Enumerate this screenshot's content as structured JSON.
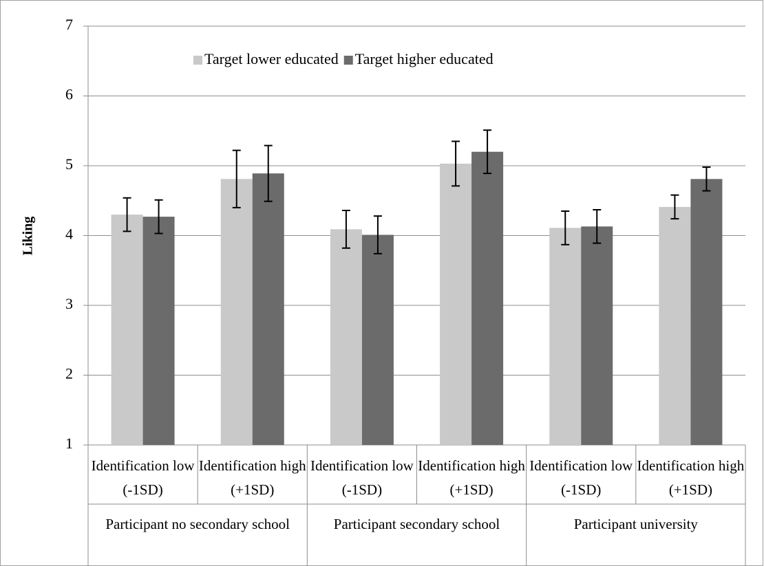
{
  "chart_data": {
    "type": "bar",
    "y_label": "Liking",
    "categories": [
      "Identification low (-1SD)",
      "Identification high (+1SD)",
      "Identification low (-1SD)",
      "Identification high (+1SD)",
      "Identification low (-1SD)",
      "Identification high (+1SD)"
    ],
    "groups": [
      "Participant no secondary school",
      "Participant secondary school",
      "Participant university"
    ],
    "series": [
      {
        "name": "Target lower educated",
        "color": "#c9c9c9",
        "values": [
          4.3,
          4.81,
          4.09,
          5.03,
          4.11,
          4.41
        ],
        "errors": [
          0.24,
          0.41,
          0.27,
          0.32,
          0.24,
          0.17
        ]
      },
      {
        "name": "Target higher educated",
        "color": "#6b6b6b",
        "values": [
          4.27,
          4.89,
          4.01,
          5.2,
          4.13,
          4.81
        ],
        "errors": [
          0.24,
          0.4,
          0.27,
          0.31,
          0.24,
          0.17
        ]
      }
    ],
    "ylim": [
      1,
      7
    ],
    "yticks": [
      1,
      2,
      3,
      4,
      5,
      6,
      7
    ],
    "grid": true,
    "legend": "top"
  }
}
